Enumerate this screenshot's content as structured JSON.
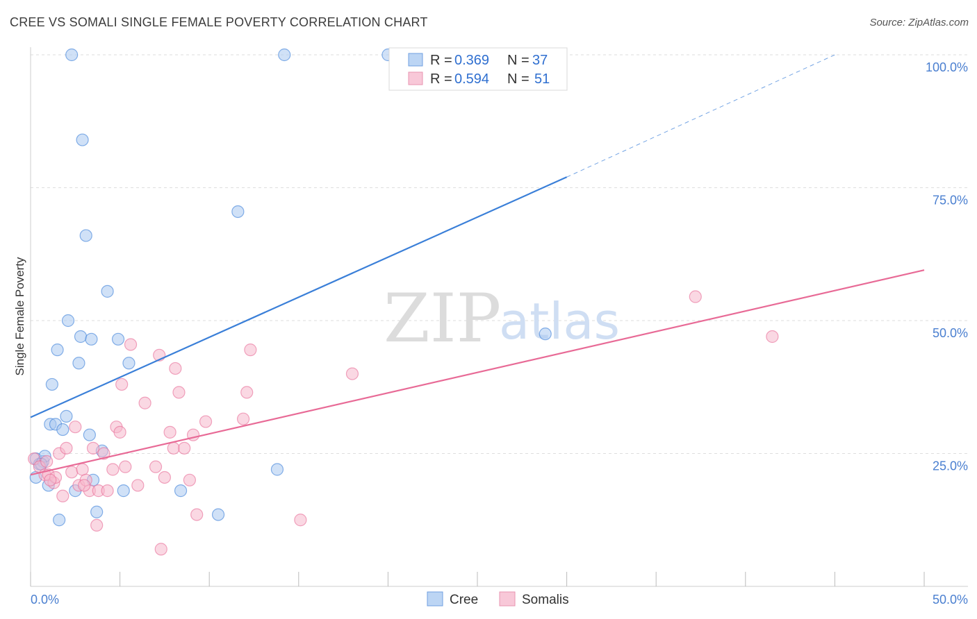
{
  "title": "CREE VS SOMALI SINGLE FEMALE POVERTY CORRELATION CHART",
  "source": "Source: ZipAtlas.com",
  "watermark": {
    "part1": "ZIP",
    "part2": "atlas"
  },
  "legend": {
    "cree": {
      "r_label": "R =",
      "r_value": "0.369",
      "n_label": "N =",
      "n_value": "37"
    },
    "somali": {
      "r_label": "R =",
      "r_value": "0.594",
      "n_label": "N =",
      "n_value": "51"
    }
  },
  "bottom_legend": {
    "cree": "Cree",
    "somali": "Somalis"
  },
  "colors": {
    "cree": "#3a7fd8",
    "cree_fill": "#a9c8f0",
    "somali": "#e86a96",
    "somali_fill": "#f5b8cc",
    "grid": "#dddddd"
  },
  "chart_data": {
    "type": "scatter",
    "ylabel": "Single Female Poverty",
    "xlim": [
      0,
      50
    ],
    "ylim": [
      0,
      100
    ],
    "x_tick_labels": [
      "0.0%",
      "50.0%"
    ],
    "y_ticks": [
      25,
      50,
      75,
      100
    ],
    "y_tick_labels": [
      "25.0%",
      "50.0%",
      "75.0%",
      "100.0%"
    ],
    "series": [
      {
        "name": "Cree",
        "points": [
          [
            0.3,
            24.0
          ],
          [
            0.3,
            20.5
          ],
          [
            0.5,
            23.0
          ],
          [
            0.7,
            23.5
          ],
          [
            0.8,
            24.5
          ],
          [
            1.0,
            19.0
          ],
          [
            1.1,
            30.5
          ],
          [
            1.2,
            38.0
          ],
          [
            1.4,
            30.5
          ],
          [
            1.5,
            44.5
          ],
          [
            1.6,
            12.5
          ],
          [
            1.8,
            29.5
          ],
          [
            2.0,
            32.0
          ],
          [
            2.1,
            50.0
          ],
          [
            2.3,
            100.0
          ],
          [
            2.5,
            18.0
          ],
          [
            2.7,
            42.0
          ],
          [
            2.8,
            47.0
          ],
          [
            2.9,
            84.0
          ],
          [
            3.1,
            66.0
          ],
          [
            3.3,
            28.5
          ],
          [
            3.4,
            46.5
          ],
          [
            3.5,
            20.0
          ],
          [
            3.7,
            14.0
          ],
          [
            4.0,
            25.5
          ],
          [
            4.3,
            55.5
          ],
          [
            4.9,
            46.5
          ],
          [
            5.2,
            18.0
          ],
          [
            5.5,
            42.0
          ],
          [
            8.4,
            18.0
          ],
          [
            10.5,
            13.5
          ],
          [
            11.6,
            70.5
          ],
          [
            13.8,
            22.0
          ],
          [
            14.2,
            100.0
          ],
          [
            20.0,
            100.0
          ],
          [
            28.8,
            47.5
          ],
          [
            0.6,
            23.0
          ]
        ]
      },
      {
        "name": "Somalis",
        "points": [
          [
            0.2,
            24.0
          ],
          [
            0.5,
            22.5
          ],
          [
            0.8,
            21.0
          ],
          [
            1.0,
            21.0
          ],
          [
            1.3,
            19.5
          ],
          [
            1.4,
            20.5
          ],
          [
            1.6,
            25.0
          ],
          [
            1.8,
            17.0
          ],
          [
            2.0,
            26.0
          ],
          [
            2.3,
            21.5
          ],
          [
            2.5,
            30.0
          ],
          [
            2.7,
            19.0
          ],
          [
            2.9,
            22.0
          ],
          [
            3.1,
            20.0
          ],
          [
            3.3,
            18.0
          ],
          [
            3.5,
            26.0
          ],
          [
            3.7,
            11.5
          ],
          [
            3.8,
            18.0
          ],
          [
            4.1,
            25.0
          ],
          [
            4.3,
            18.0
          ],
          [
            4.6,
            22.0
          ],
          [
            4.8,
            30.0
          ],
          [
            5.0,
            29.0
          ],
          [
            5.1,
            38.0
          ],
          [
            5.3,
            22.5
          ],
          [
            5.6,
            45.5
          ],
          [
            6.0,
            19.0
          ],
          [
            6.4,
            34.5
          ],
          [
            7.0,
            22.5
          ],
          [
            7.2,
            43.5
          ],
          [
            7.5,
            20.5
          ],
          [
            7.8,
            29.0
          ],
          [
            8.0,
            26.0
          ],
          [
            8.1,
            41.0
          ],
          [
            8.3,
            36.5
          ],
          [
            8.6,
            26.0
          ],
          [
            8.9,
            20.0
          ],
          [
            9.1,
            28.5
          ],
          [
            9.3,
            13.5
          ],
          [
            9.8,
            31.0
          ],
          [
            11.9,
            31.5
          ],
          [
            12.1,
            36.5
          ],
          [
            12.3,
            44.5
          ],
          [
            15.1,
            12.5
          ],
          [
            18.0,
            40.0
          ],
          [
            7.3,
            7.0
          ],
          [
            37.2,
            54.5
          ],
          [
            41.5,
            47.0
          ],
          [
            1.1,
            20.0
          ],
          [
            0.9,
            23.5
          ],
          [
            3.0,
            19.0
          ]
        ]
      }
    ],
    "trend_lines": [
      {
        "name": "Cree",
        "from": [
          0,
          31.8
        ],
        "to": [
          30,
          77.0
        ],
        "dashed_to": [
          45,
          100.0
        ]
      },
      {
        "name": "Somalis",
        "from": [
          0,
          21.0
        ],
        "to": [
          50,
          59.5
        ]
      }
    ]
  }
}
